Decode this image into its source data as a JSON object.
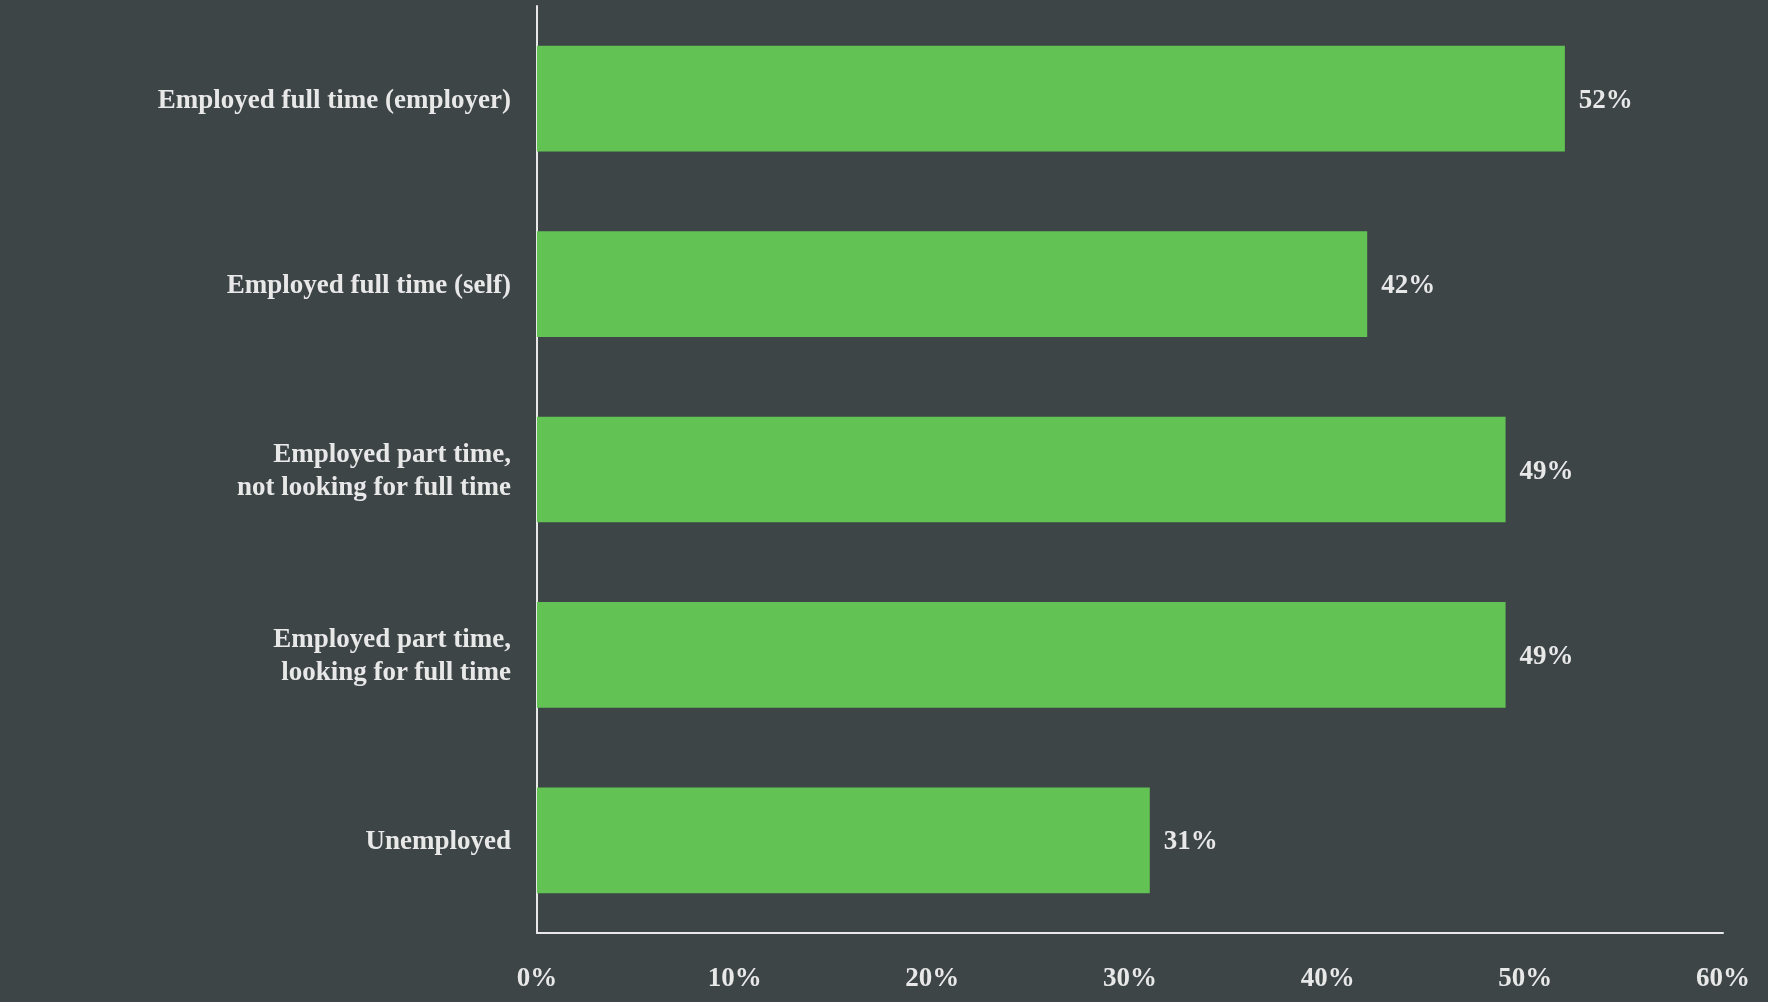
{
  "chart_data": {
    "type": "bar",
    "orientation": "horizontal",
    "categories": [
      "Employed full time (employer)",
      "Employed full time (self)",
      "Employed part time,\nnot looking for full time",
      "Employed part time,\nlooking for full time",
      "Unemployed"
    ],
    "values": [
      52,
      42,
      49,
      49,
      31
    ],
    "value_labels": [
      "52%",
      "42%",
      "49%",
      "49%",
      "31%"
    ],
    "color": "#62c354",
    "xlim": [
      0,
      60
    ],
    "xticks": [
      {
        "value": 0,
        "label": "0%"
      },
      {
        "value": 10,
        "label": "10%"
      },
      {
        "value": 20,
        "label": "20%"
      },
      {
        "value": 30,
        "label": "30%"
      },
      {
        "value": 40,
        "label": "40%"
      },
      {
        "value": 50,
        "label": "50%"
      },
      {
        "value": 60,
        "label": "60%"
      }
    ]
  }
}
